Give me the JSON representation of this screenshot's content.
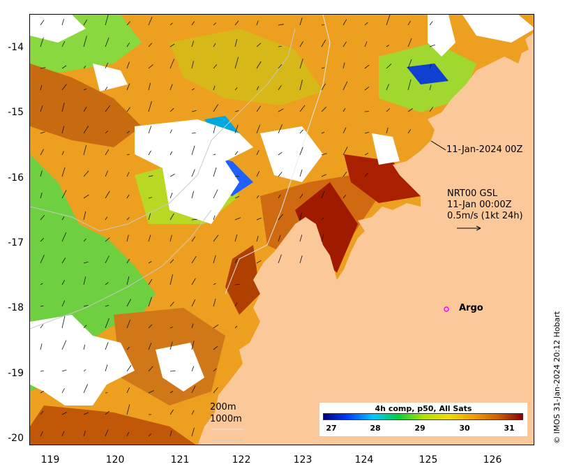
{
  "map": {
    "y_ticks": [
      "-14",
      "-15",
      "-16",
      "-17",
      "-18",
      "-19",
      "-20"
    ],
    "x_ticks": [
      "119",
      "120",
      "121",
      "122",
      "123",
      "124",
      "125",
      "126"
    ],
    "labels": {
      "timestamp_label": "11-Jan-2024 00Z",
      "gsl_line1": "NRT00 GSL",
      "gsl_line2": "11-Jan 00:00Z",
      "gsl_line3": "0.5m/s (1kt 24h)",
      "argo_label": "Argo",
      "contour_200": "200m",
      "contour_1000": "1000m"
    },
    "credit": "© IMOS 31-Jan-2024 20:12 Hobart",
    "colorbar": {
      "title": "4h comp, p50, All Sats",
      "ticks": [
        "27",
        "28",
        "29",
        "30",
        "31"
      ],
      "colors": [
        "#00007f",
        "#0040ff",
        "#00c8ff",
        "#00d040",
        "#b0e000",
        "#f0e000",
        "#f0a000",
        "#d06000",
        "#8b0000"
      ]
    },
    "land_color": "#fbc89a",
    "argo_color": "#ff00ff"
  }
}
